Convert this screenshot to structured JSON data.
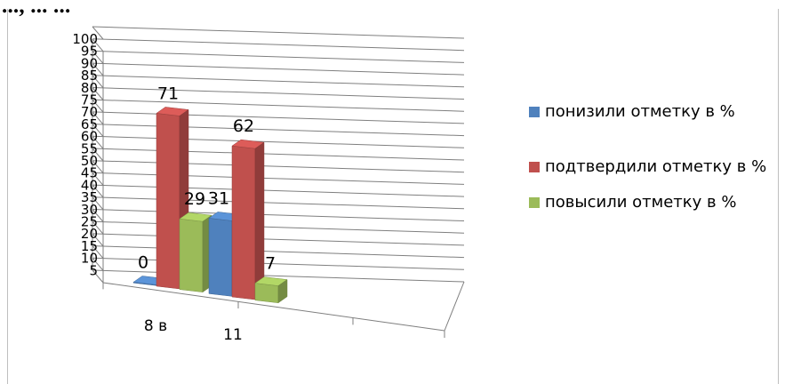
{
  "heading": "..., ... ...",
  "chart_data": {
    "type": "bar",
    "categories": [
      "8 в",
      "11"
    ],
    "series": [
      {
        "name": "понизили отметку в %",
        "values": [
          0,
          31
        ],
        "color": "#4f81bd"
      },
      {
        "name": "подтвердили отметку в %",
        "values": [
          71,
          62
        ],
        "color": "#c0504d"
      },
      {
        "name": "повысили отметку в %",
        "values": [
          29,
          7
        ],
        "color": "#9bbb59"
      }
    ],
    "yticks": [
      5,
      10,
      15,
      20,
      25,
      30,
      35,
      40,
      45,
      50,
      55,
      60,
      65,
      70,
      75,
      80,
      85,
      90,
      95,
      100
    ],
    "ylim": [
      0,
      100
    ],
    "legend_position": "right",
    "grid": true,
    "style": "3d"
  }
}
